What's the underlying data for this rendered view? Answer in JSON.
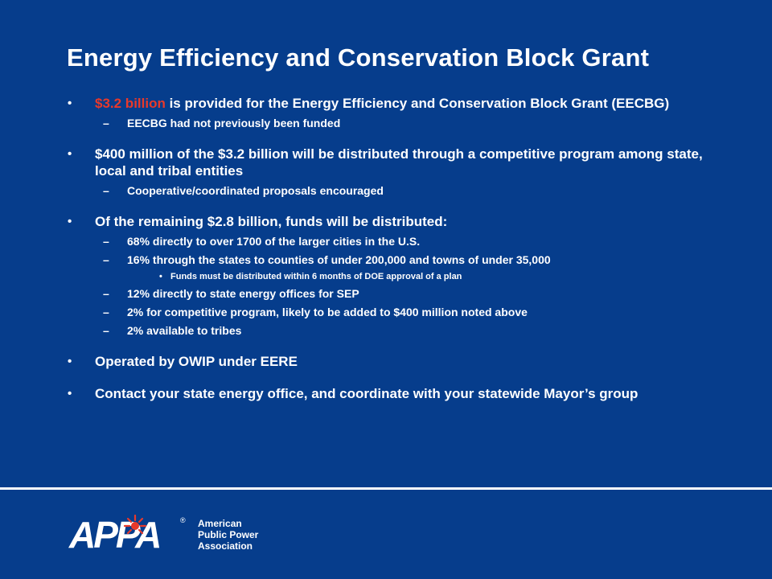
{
  "slide": {
    "title": "Energy Efficiency and Conservation Block Grant",
    "bullets": [
      {
        "highlight": "$3.2 billion",
        "text": " is provided for the Energy Efficiency and Conservation Block Grant (EECBG)",
        "subs": [
          {
            "text": "EECBG had not previously been funded"
          }
        ]
      },
      {
        "text": "$400 million of the $3.2 billion will be distributed through a competitive program among state, local and tribal entities",
        "subs": [
          {
            "text": "Cooperative/coordinated proposals encouraged"
          }
        ]
      },
      {
        "text": "Of the remaining $2.8 billion, funds will be distributed:",
        "subs": [
          {
            "text": "68% directly to over 1700 of the larger cities in the U.S."
          },
          {
            "text": "16% through the states to counties of under 200,000 and towns of under 35,000",
            "subs": [
              {
                "text": "Funds must be distributed within 6 months of DOE approval of a plan"
              }
            ]
          },
          {
            "text": "12% directly to state energy offices for SEP"
          },
          {
            "text": "2% for competitive program, likely to be added to $400 million noted above"
          },
          {
            "text": "2% available to tribes"
          }
        ]
      },
      {
        "text": "Operated by OWIP under EERE"
      },
      {
        "text": "Contact your state energy office, and coordinate with your statewide Mayor’s group"
      }
    ],
    "markers": {
      "bullet": "•",
      "dash": "–",
      "small_bullet": "•"
    }
  },
  "footer": {
    "logo_text": "APPA",
    "registered": "®",
    "org_lines": [
      "American",
      "Public Power",
      "Association"
    ]
  },
  "colors": {
    "background": "#063d8c",
    "text": "#ffffff",
    "accent": "#e8392b"
  }
}
